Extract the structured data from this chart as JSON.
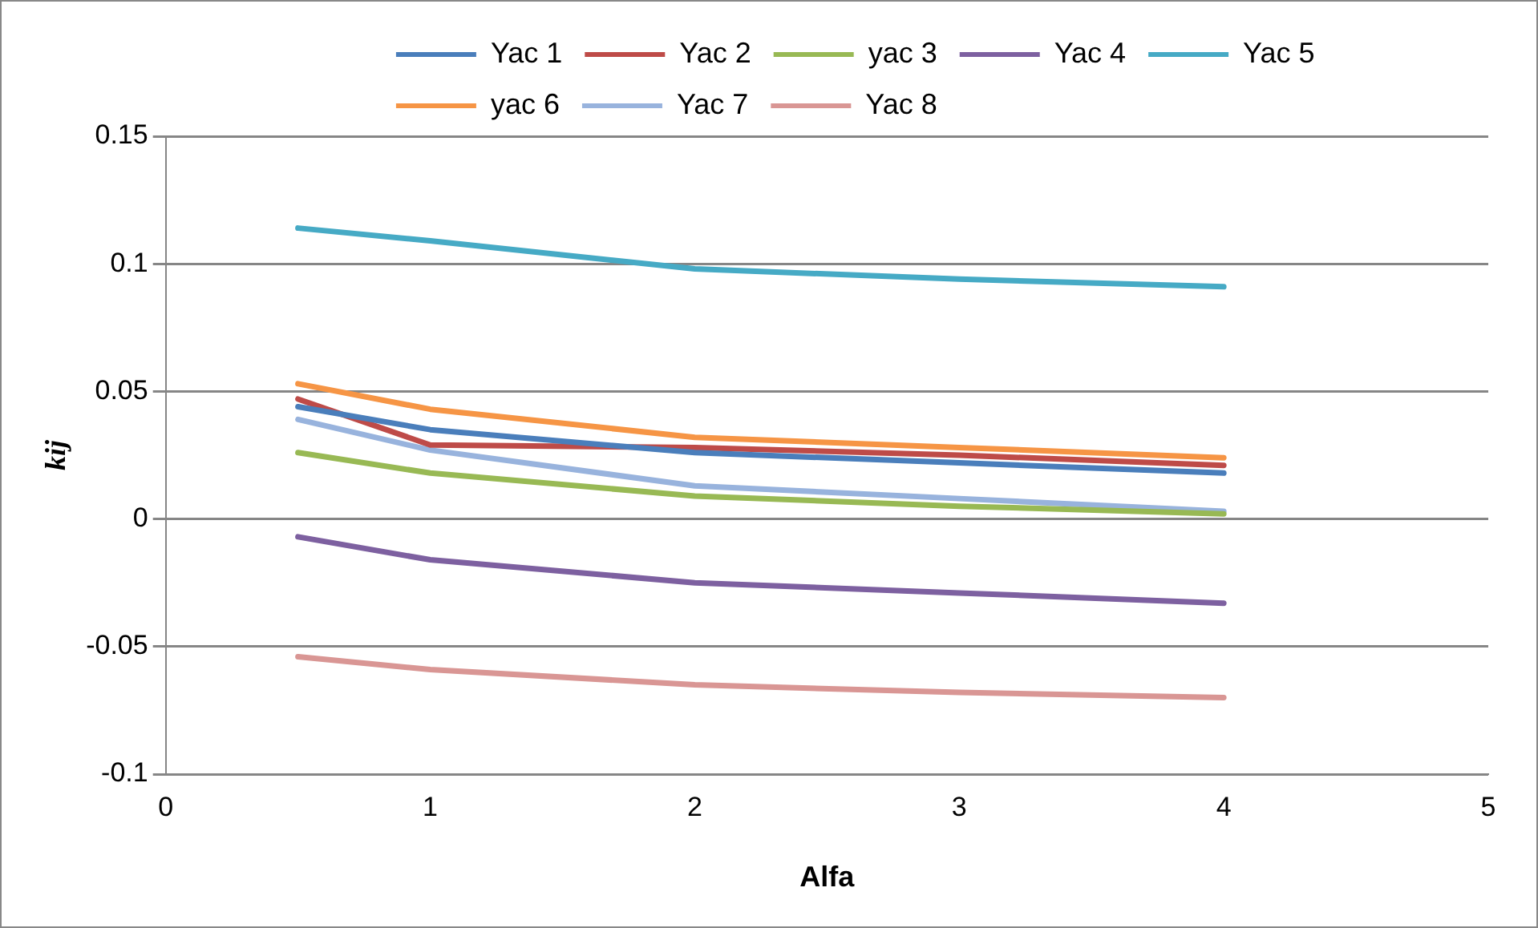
{
  "chart_data": {
    "type": "line",
    "xlabel": "Alfa",
    "ylabel": "kij",
    "x": [
      0.5,
      1,
      2,
      3,
      4
    ],
    "series": [
      {
        "name": "Yac 1",
        "color": "#4a7ebb",
        "values": [
          0.044,
          0.035,
          0.026,
          0.022,
          0.018
        ]
      },
      {
        "name": "Yac 2",
        "color": "#be4b48",
        "values": [
          0.047,
          0.029,
          0.028,
          0.025,
          0.021
        ]
      },
      {
        "name": "yac 3",
        "color": "#98b954",
        "values": [
          0.026,
          0.018,
          0.009,
          0.005,
          0.002
        ]
      },
      {
        "name": "Yac 4",
        "color": "#7d60a0",
        "values": [
          -0.007,
          -0.016,
          -0.025,
          -0.029,
          -0.033
        ]
      },
      {
        "name": "Yac 5",
        "color": "#46aac5",
        "values": [
          0.114,
          0.109,
          0.098,
          0.094,
          0.091
        ]
      },
      {
        "name": "yac 6",
        "color": "#f69545",
        "values": [
          0.053,
          0.043,
          0.032,
          0.028,
          0.024
        ]
      },
      {
        "name": "Yac 7",
        "color": "#98b3dd",
        "values": [
          0.039,
          0.027,
          0.013,
          0.008,
          0.003
        ]
      },
      {
        "name": "Yac 8",
        "color": "#d99694",
        "values": [
          -0.054,
          -0.059,
          -0.065,
          -0.068,
          -0.07
        ]
      }
    ],
    "xlim": [
      0,
      5
    ],
    "xticks": [
      0,
      1,
      2,
      3,
      4,
      5
    ],
    "ylim": [
      -0.1,
      0.15
    ],
    "yticks": [
      -0.1,
      -0.05,
      0,
      0.05,
      0.1,
      0.15
    ],
    "grid": "y",
    "legend": "top",
    "marker": "none",
    "line_style": "solid"
  }
}
